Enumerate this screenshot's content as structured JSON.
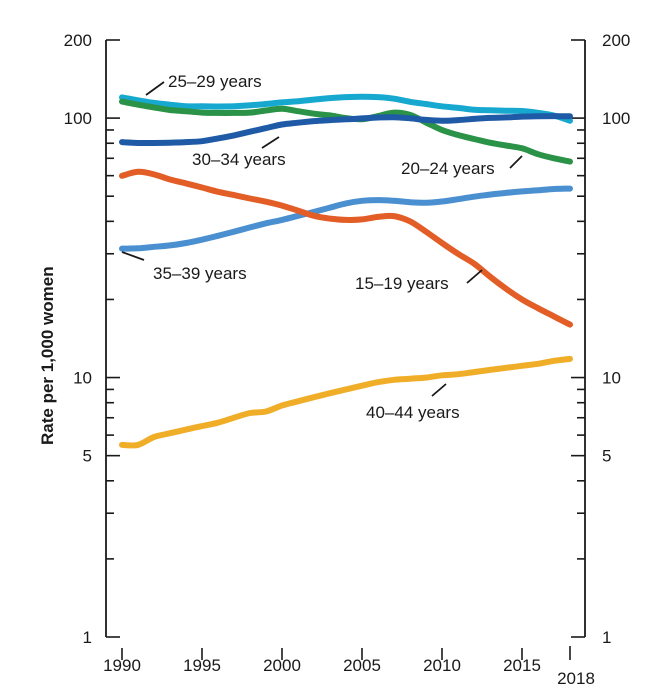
{
  "chart_data": {
    "type": "line",
    "title": "",
    "xlabel": "",
    "ylabel": "Rate per 1,000 women",
    "y_scale": "log",
    "ylim": [
      1,
      200
    ],
    "xlim": [
      1990,
      2018
    ],
    "y_ticks": [
      {
        "value": 1,
        "label": "1"
      },
      {
        "value": 5,
        "label": "5"
      },
      {
        "value": 10,
        "label": "10"
      },
      {
        "value": 100,
        "label": "100"
      },
      {
        "value": 200,
        "label": "200"
      }
    ],
    "y_minor_ticks": [
      2,
      3,
      4,
      6,
      7,
      8,
      9,
      20,
      30,
      40,
      50,
      60,
      70,
      80,
      90
    ],
    "x_ticks": [
      {
        "value": 1990,
        "label": "1990"
      },
      {
        "value": 1995,
        "label": "1995"
      },
      {
        "value": 2000,
        "label": "2000"
      },
      {
        "value": 2005,
        "label": "2005"
      },
      {
        "value": 2010,
        "label": "2010"
      },
      {
        "value": 2015,
        "label": "2015"
      },
      {
        "value": 2018,
        "label": "2018"
      }
    ],
    "x": [
      1990,
      1991,
      1992,
      1993,
      1994,
      1995,
      1996,
      1997,
      1998,
      1999,
      2000,
      2001,
      2002,
      2003,
      2004,
      2005,
      2006,
      2007,
      2008,
      2009,
      2010,
      2011,
      2012,
      2013,
      2014,
      2015,
      2016,
      2017,
      2018
    ],
    "series": [
      {
        "name": "25–29 years",
        "label": "25–29 years",
        "color": "#17a8cf",
        "values": [
          120.2,
          117.1,
          114.4,
          112.6,
          111.0,
          111.0,
          110.8,
          111.0,
          112.0,
          113.3,
          115.0,
          116.2,
          117.8,
          119.4,
          120.5,
          120.9,
          120.5,
          118.8,
          115.6,
          113.3,
          111.0,
          109.5,
          107.7,
          107.2,
          106.8,
          106.5,
          104.8,
          102.3,
          97.7
        ]
      },
      {
        "name": "20–24 years",
        "label": "20–24 years",
        "color": "#2b9348",
        "values": [
          115.8,
          112.6,
          110.0,
          107.5,
          106.3,
          105.0,
          104.7,
          104.7,
          105.0,
          107.0,
          108.7,
          106.3,
          104.0,
          102.4,
          100.0,
          99.0,
          101.8,
          105.0,
          103.0,
          96.2,
          90.0,
          86.1,
          83.1,
          80.4,
          78.4,
          76.5,
          72.6,
          70.0,
          68.0
        ]
      },
      {
        "name": "30–34 years",
        "label": "30–34 years",
        "color": "#1f5aa6",
        "values": [
          80.8,
          80.2,
          80.2,
          80.4,
          80.8,
          81.5,
          83.5,
          85.8,
          88.6,
          91.5,
          94.5,
          96.0,
          97.4,
          98.2,
          98.9,
          99.7,
          100.5,
          100.7,
          99.8,
          98.4,
          97.7,
          98.2,
          99.3,
          100.2,
          100.6,
          101.3,
          101.7,
          101.8,
          101.6
        ]
      },
      {
        "name": "35–39 years",
        "label": "35–39 years",
        "color": "#4a8fd0",
        "values": [
          31.4,
          31.5,
          31.9,
          32.3,
          33.0,
          34.0,
          35.2,
          36.5,
          37.9,
          39.3,
          40.5,
          42.0,
          43.5,
          45.2,
          46.9,
          48.0,
          48.3,
          48.0,
          47.4,
          47.2,
          47.7,
          48.7,
          49.8,
          50.7,
          51.5,
          52.2,
          52.7,
          53.3,
          53.5
        ]
      },
      {
        "name": "15–19 years",
        "label": "15–19 years",
        "color": "#e35d27",
        "values": [
          59.9,
          62.1,
          60.7,
          58.0,
          56.0,
          54.0,
          52.0,
          50.5,
          49.0,
          47.6,
          46.0,
          44.0,
          42.0,
          41.0,
          40.5,
          40.7,
          41.6,
          41.9,
          40.0,
          36.5,
          33.0,
          30.0,
          27.5,
          24.5,
          22.0,
          20.0,
          18.5,
          17.2,
          16.0
        ]
      },
      {
        "name": "40–44 years",
        "label": "40–44 years",
        "color": "#f0ae28",
        "values": [
          5.5,
          5.5,
          5.9,
          6.1,
          6.3,
          6.5,
          6.7,
          7.0,
          7.3,
          7.4,
          7.8,
          8.1,
          8.4,
          8.7,
          9.0,
          9.3,
          9.6,
          9.8,
          9.9,
          10.0,
          10.2,
          10.3,
          10.5,
          10.7,
          10.9,
          11.1,
          11.3,
          11.6,
          11.8
        ]
      }
    ]
  }
}
